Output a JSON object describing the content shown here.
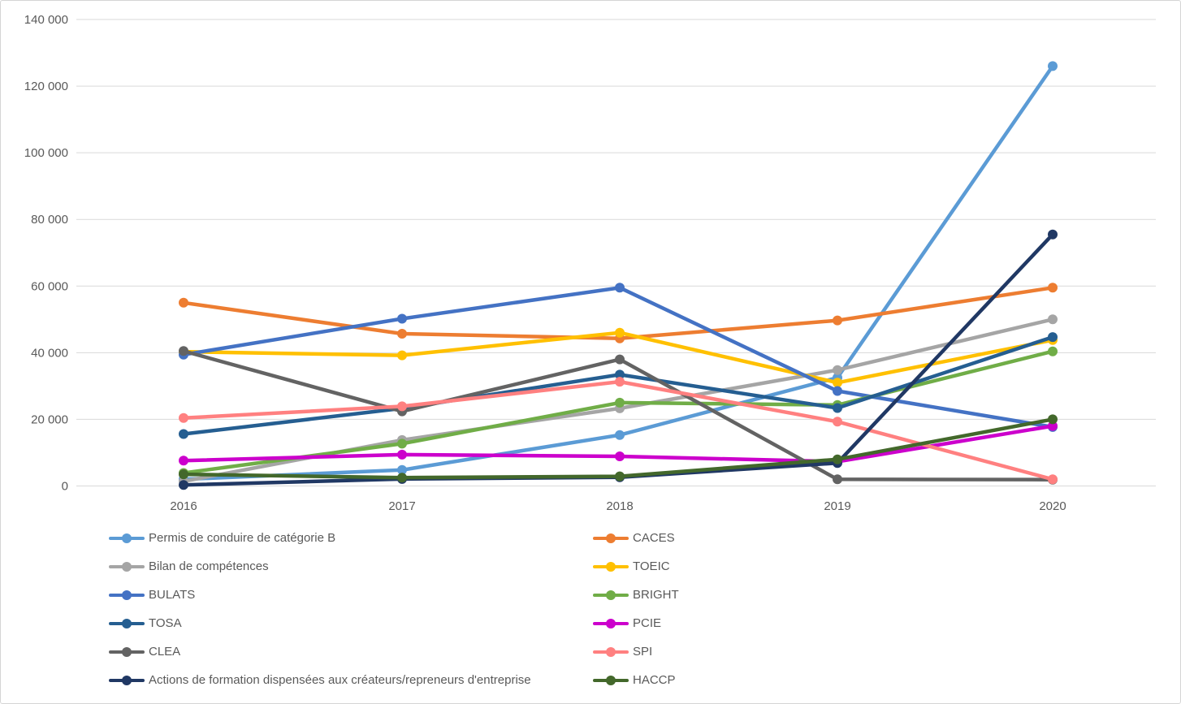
{
  "chart_data": {
    "type": "line",
    "title": "",
    "xlabel": "",
    "ylabel": "",
    "categories": [
      "2016",
      "2017",
      "2018",
      "2019",
      "2020"
    ],
    "ylim": [
      0,
      140000
    ],
    "ytick_step": 20000,
    "ytick_labels_top_down": [
      "140 000",
      "120 000",
      "100 000",
      "80 000",
      "60 000",
      "40 000",
      "20 000",
      "0"
    ],
    "grid": "horizontal",
    "legend_position": "bottom-two-columns",
    "axis_text_color": "#595959",
    "gridline_color": "#d9d9d9",
    "series": [
      {
        "name": "Permis de conduire de catégorie B",
        "color": "#5B9BD5",
        "values": [
          2000,
          4800,
          15300,
          32500,
          126000
        ]
      },
      {
        "name": "CACES",
        "color": "#ED7D31",
        "values": [
          55000,
          45700,
          44300,
          49700,
          59500
        ]
      },
      {
        "name": "Bilan de compétences",
        "color": "#A5A5A5",
        "values": [
          1400,
          13800,
          23300,
          34800,
          50000
        ]
      },
      {
        "name": "TOEIC",
        "color": "#FFC000",
        "values": [
          40300,
          39200,
          46000,
          31000,
          43800
        ]
      },
      {
        "name": "BULATS",
        "color": "#4472C4",
        "values": [
          39400,
          50200,
          59500,
          28500,
          17700
        ]
      },
      {
        "name": "BRIGHT",
        "color": "#70AD47",
        "values": [
          3900,
          12700,
          25000,
          24300,
          40400
        ]
      },
      {
        "name": "TOSA",
        "color": "#255E91",
        "values": [
          15600,
          23300,
          33400,
          23400,
          44700
        ]
      },
      {
        "name": "PCIE",
        "color": "#CC00CC",
        "values": [
          7600,
          9400,
          8900,
          7300,
          18000
        ]
      },
      {
        "name": "CLEA",
        "color": "#636363",
        "values": [
          40500,
          22400,
          38000,
          2000,
          1900
        ]
      },
      {
        "name": "SPI",
        "color": "#FF8080",
        "values": [
          20400,
          23900,
          31300,
          19300,
          2000
        ]
      },
      {
        "name": "Actions de formation dispensées aux créateurs/repreneurs d'entreprise",
        "color": "#203864",
        "values": [
          300,
          2100,
          2600,
          6900,
          75500
        ]
      },
      {
        "name": "HACCP",
        "color": "#43682B",
        "values": [
          3500,
          2500,
          2900,
          8000,
          20000
        ]
      }
    ]
  }
}
